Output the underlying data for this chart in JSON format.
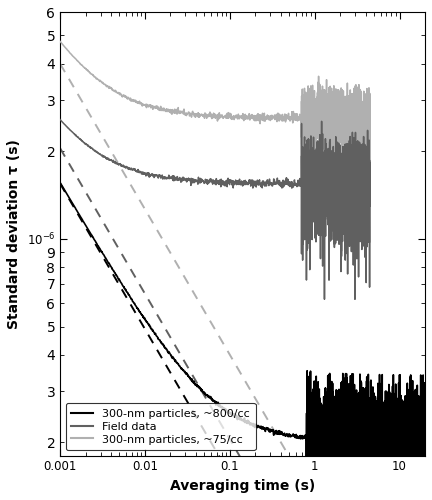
{
  "xlabel": "Averaging time (s)",
  "ylabel": "Standard deviation τ (s)",
  "xlim_log": [
    -3,
    1.3
  ],
  "ylim": [
    1.8e-07,
    6e-06
  ],
  "colors": {
    "black": "#000000",
    "dark_gray": "#606060",
    "light_gray": "#b0b0b0"
  },
  "legend_labels": [
    "300-nm particles, ~800/cc",
    "Field data",
    "300-nm particles, ~75/cc"
  ],
  "single_shot_values": {
    "black": 1.55e-06,
    "dark_gray": 2.05e-06,
    "light_gray": 4e-06
  },
  "noise_floors": {
    "black": 2e-07,
    "dark_gray": 1.55e-06,
    "light_gray": 2.6e-06
  },
  "smooth_end_times": {
    "black": 0.8,
    "dark_gray": 0.7,
    "light_gray": 0.7
  },
  "data_end_times": {
    "black": 20.0,
    "dark_gray": 4.5,
    "light_gray": 4.5
  },
  "dashed_end_times": {
    "black": 0.25,
    "dark_gray": 0.6,
    "light_gray": 1.5
  }
}
